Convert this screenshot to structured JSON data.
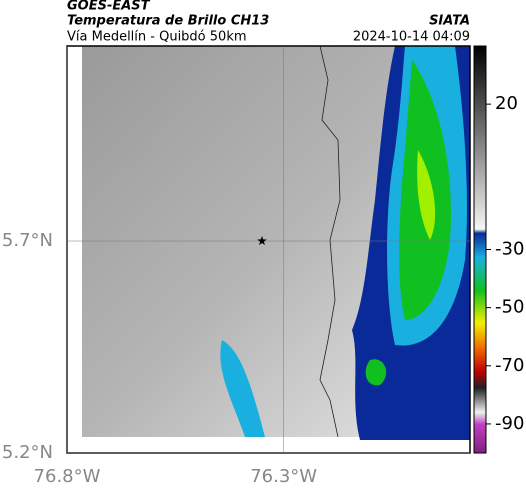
{
  "header": {
    "source": "GOES-EAST",
    "title": "Temperatura de Brillo CH13",
    "subtitle": "Vía Medellín - Quibdó 50km",
    "agency": "SIATA",
    "timestamp": "2024-10-14 04:09"
  },
  "map": {
    "lonlim": [
      -76.8,
      -75.87
    ],
    "latlim": [
      5.2,
      6.16
    ],
    "lonticks": [
      {
        "value": -76.8,
        "label": "76.8°W"
      },
      {
        "value": -76.3,
        "label": "76.3°W"
      }
    ],
    "latticks": [
      {
        "value": 5.7,
        "label": "5.7°N"
      },
      {
        "value": 5.2,
        "label": "5.2°N"
      }
    ],
    "marker": {
      "lon": -76.35,
      "lat": 5.7
    }
  },
  "colorbar": {
    "lim": [
      40,
      -100
    ],
    "ticks": [
      20,
      -30,
      -50,
      -70,
      -90
    ]
  }
}
